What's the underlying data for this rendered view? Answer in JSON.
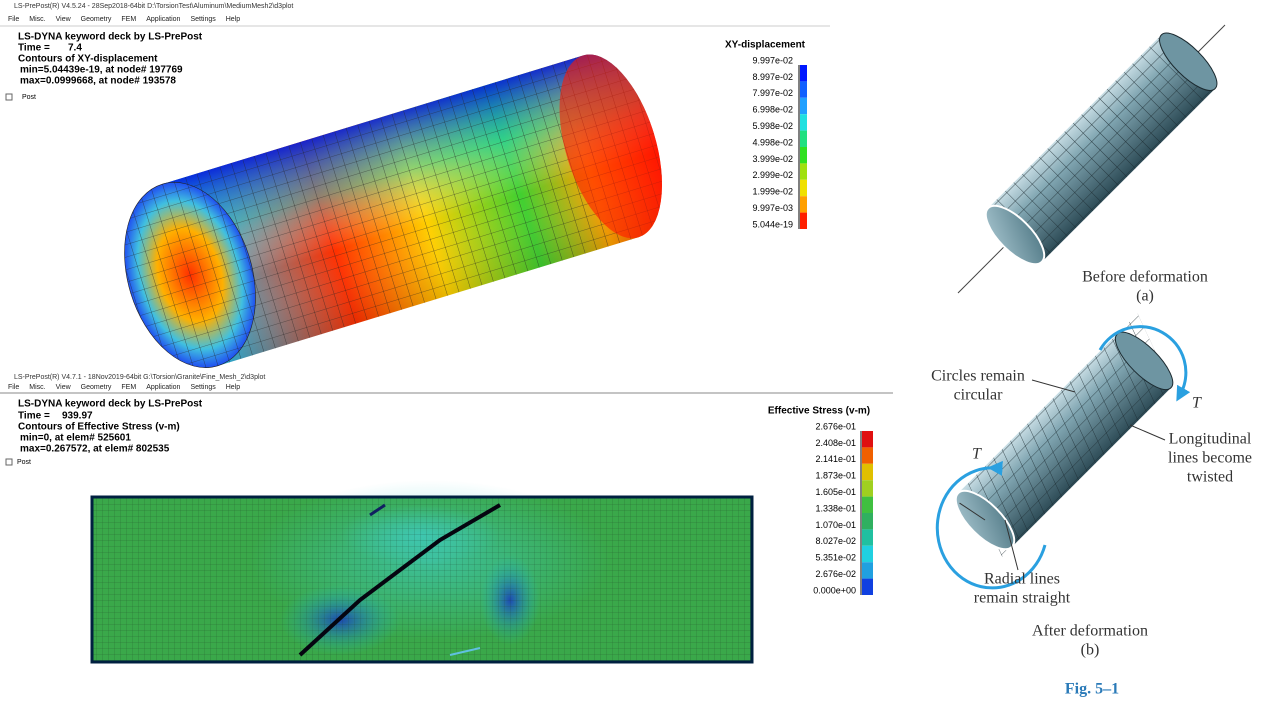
{
  "top_window": {
    "title_bar": "LS-PrePost(R) V4.5.24 - 28Sep2018-64bit D:\\TorsionTest\\Aluminum\\MediumMesh2\\d3plot",
    "menu": [
      "File",
      "Misc.",
      "View",
      "Geometry",
      "FEM",
      "Application",
      "Settings",
      "Help"
    ],
    "header": {
      "deck": "LS-DYNA keyword deck by LS-PrePost",
      "time_label": "Time =",
      "time_value": "7.4",
      "contour": "Contours of XY-displacement",
      "min": "min=5.04439e-19, at node# 197769",
      "max": "max=0.0999668, at node# 193578"
    },
    "tree": "Post",
    "legend": {
      "title": "XY-displacement",
      "labels": [
        "9.997e-02",
        "8.997e-02",
        "7.997e-02",
        "6.998e-02",
        "5.998e-02",
        "4.998e-02",
        "3.999e-02",
        "2.999e-02",
        "1.999e-02",
        "9.997e-03",
        "5.044e-19"
      ]
    }
  },
  "bottom_window": {
    "title_bar": "LS-PrePost(R) V4.7.1 - 18Nov2019-64bit G:\\Torsion\\Granite\\Fine_Mesh_2\\d3plot",
    "menu": [
      "File",
      "Misc.",
      "View",
      "Geometry",
      "FEM",
      "Application",
      "Settings",
      "Help"
    ],
    "header": {
      "deck": "LS-DYNA keyword deck by LS-PrePost",
      "time_label": "Time =",
      "time_value": "939.97",
      "contour": "Contours of Effective Stress (v-m)",
      "min": "min=0, at elem# 525601",
      "max": "max=0.267572, at elem# 802535"
    },
    "tree": "Post",
    "legend": {
      "title": "Effective Stress (v-m)",
      "labels": [
        "2.676e-01",
        "2.408e-01",
        "2.141e-01",
        "1.873e-01",
        "1.605e-01",
        "1.338e-01",
        "1.070e-01",
        "8.027e-02",
        "5.351e-02",
        "2.676e-02",
        "0.000e+00"
      ]
    }
  },
  "figure": {
    "before_caption": "Before deformation",
    "before_label": "(a)",
    "circles": [
      "Circles remain",
      "circular"
    ],
    "torque_right": "T",
    "longitudinal": [
      "Longitudinal",
      "lines become",
      "twisted"
    ],
    "torque_left": "T",
    "radial": [
      "Radial lines",
      "remain straight"
    ],
    "after_caption": "After deformation",
    "after_label": "(b)",
    "fig_number": "Fig. 5–1"
  }
}
